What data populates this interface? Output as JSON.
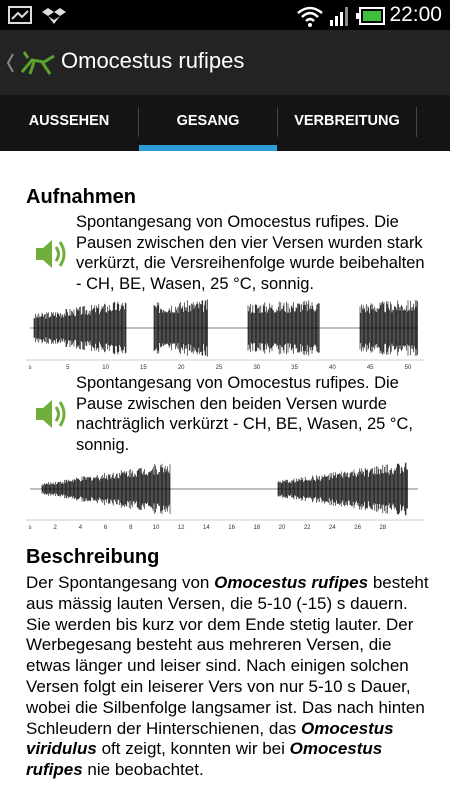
{
  "status_bar": {
    "time": "22:00"
  },
  "action_bar": {
    "title": "Omocestus rufipes"
  },
  "tabs": [
    {
      "label": "AUSSEHEN",
      "selected": false
    },
    {
      "label": "GESANG",
      "selected": true
    },
    {
      "label": "VERBREITUNG",
      "selected": false
    }
  ],
  "recordings_heading": "Aufnahmen",
  "recordings": [
    {
      "description": "Spontangesang von Omocestus rufipes. Die Pausen zwischen den vier Versen wurden stark verkürzt, die Versreihenfolge wurde beibehalten - CH, BE, Wasen, 25 °C, sonnig.",
      "ticks": [
        "s",
        "5",
        "10",
        "15",
        "20",
        "25",
        "30",
        "35",
        "40",
        "45",
        "50"
      ]
    },
    {
      "description": "Spontangesang von Omocestus rufipes. Die Pause zwischen den beiden Versen wurde nachträglich verkürzt - CH, BE, Wasen, 25 °C, sonnig.",
      "ticks": [
        "s",
        "2",
        "4",
        "6",
        "8",
        "10",
        "12",
        "14",
        "16",
        "18",
        "20",
        "22",
        "24",
        "26",
        "28"
      ]
    }
  ],
  "description_heading": "Beschreibung",
  "description": [
    {
      "text": "Der Spontangesang von "
    },
    {
      "text": "Omocestus rufipes",
      "style": "species"
    },
    {
      "text": " besteht aus mässig lauten Versen, die 5-10 (-15) s dauern. Sie werden bis kurz vor dem Ende stetig lauter. Der Werbegesang besteht aus mehreren Versen, die etwas länger und leiser sind. Nach einigen solchen Versen folgt ein leiserer Vers von nur 5-10 s Dauer, wobei die Silbenfolge langsamer ist. Das nach hinten Schleudern der Hinterschienen, das "
    },
    {
      "text": "Omocestus viridulus",
      "style": "species"
    },
    {
      "text": " oft zeigt, konnten wir bei "
    },
    {
      "text": "Omocestus rufipes",
      "style": "species"
    },
    {
      "text": " nie beobachtet."
    }
  ]
}
